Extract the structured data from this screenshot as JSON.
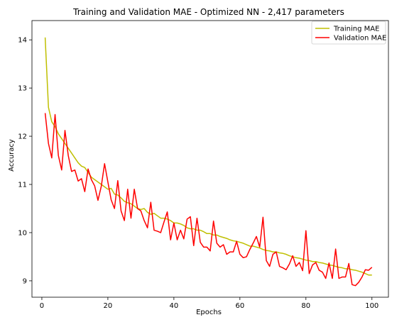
{
  "chart_data": {
    "type": "line",
    "title": "Training and Validation MAE - Optimized NN - 2,417 parameters",
    "xlabel": "Epochs",
    "ylabel": "Accuracy",
    "xlim": [
      -3,
      105
    ],
    "ylim": [
      8.66,
      14.4
    ],
    "xticks": [
      0,
      20,
      40,
      60,
      80,
      100
    ],
    "yticks": [
      9,
      10,
      11,
      12,
      13,
      14
    ],
    "grid": false,
    "legend_position": "top-right",
    "series": [
      {
        "name": "Training MAE",
        "color": "#bfbf00",
        "x": [
          1,
          2,
          3,
          4,
          5,
          6,
          7,
          8,
          9,
          10,
          11,
          12,
          13,
          14,
          15,
          16,
          17,
          18,
          19,
          20,
          21,
          22,
          23,
          24,
          25,
          26,
          27,
          28,
          29,
          30,
          31,
          32,
          33,
          34,
          35,
          36,
          37,
          38,
          39,
          40,
          41,
          42,
          43,
          44,
          45,
          46,
          47,
          48,
          49,
          50,
          51,
          52,
          53,
          54,
          55,
          56,
          57,
          58,
          59,
          60,
          61,
          62,
          63,
          64,
          65,
          66,
          67,
          68,
          69,
          70,
          71,
          72,
          73,
          74,
          75,
          76,
          77,
          78,
          79,
          80,
          81,
          82,
          83,
          84,
          85,
          86,
          87,
          88,
          89,
          90,
          91,
          92,
          93,
          94,
          95,
          96,
          97,
          98,
          99,
          100
        ],
        "values": [
          14.05,
          12.6,
          12.3,
          12.2,
          12.05,
          11.95,
          11.85,
          11.75,
          11.65,
          11.55,
          11.45,
          11.38,
          11.35,
          11.25,
          11.15,
          11.1,
          11.05,
          11.0,
          10.95,
          10.9,
          10.92,
          10.8,
          10.78,
          10.72,
          10.65,
          10.62,
          10.6,
          10.55,
          10.5,
          10.48,
          10.5,
          10.42,
          10.38,
          10.4,
          10.35,
          10.3,
          10.3,
          10.28,
          10.25,
          10.2,
          10.2,
          10.18,
          10.15,
          10.1,
          10.08,
          10.08,
          10.05,
          10.05,
          10.02,
          9.98,
          9.98,
          9.95,
          9.95,
          9.92,
          9.9,
          9.88,
          9.85,
          9.83,
          9.82,
          9.8,
          9.78,
          9.75,
          9.72,
          9.72,
          9.7,
          9.68,
          9.65,
          9.63,
          9.62,
          9.6,
          9.6,
          9.58,
          9.57,
          9.55,
          9.52,
          9.5,
          9.48,
          9.47,
          9.45,
          9.43,
          9.42,
          9.4,
          9.4,
          9.38,
          9.37,
          9.35,
          9.33,
          9.32,
          9.3,
          9.28,
          9.27,
          9.25,
          9.25,
          9.23,
          9.22,
          9.2,
          9.18,
          9.15,
          9.12,
          9.12
        ]
      },
      {
        "name": "Validation MAE",
        "color": "#ff0000",
        "x": [
          1,
          2,
          3,
          4,
          5,
          6,
          7,
          8,
          9,
          10,
          11,
          12,
          13,
          14,
          15,
          16,
          17,
          18,
          19,
          20,
          21,
          22,
          23,
          24,
          25,
          26,
          27,
          28,
          29,
          30,
          31,
          32,
          33,
          34,
          35,
          36,
          37,
          38,
          39,
          40,
          41,
          42,
          43,
          44,
          45,
          46,
          47,
          48,
          49,
          50,
          51,
          52,
          53,
          54,
          55,
          56,
          57,
          58,
          59,
          60,
          61,
          62,
          63,
          64,
          65,
          66,
          67,
          68,
          69,
          70,
          71,
          72,
          73,
          74,
          75,
          76,
          77,
          78,
          79,
          80,
          81,
          82,
          83,
          84,
          85,
          86,
          87,
          88,
          89,
          90,
          91,
          92,
          93,
          94,
          95,
          96,
          97,
          98,
          99,
          100
        ],
        "values": [
          12.48,
          11.85,
          11.55,
          12.45,
          11.6,
          11.3,
          12.12,
          11.6,
          11.27,
          11.3,
          11.07,
          11.12,
          10.85,
          11.32,
          11.1,
          10.97,
          10.67,
          10.96,
          11.43,
          11.05,
          10.68,
          10.5,
          11.08,
          10.45,
          10.25,
          10.9,
          10.3,
          10.9,
          10.5,
          10.45,
          10.25,
          10.1,
          10.63,
          10.05,
          10.03,
          10.0,
          10.22,
          10.43,
          9.85,
          10.2,
          9.85,
          10.05,
          9.87,
          10.28,
          10.33,
          9.73,
          10.3,
          9.8,
          9.7,
          9.7,
          9.62,
          10.24,
          9.78,
          9.7,
          9.75,
          9.55,
          9.6,
          9.6,
          9.82,
          9.55,
          9.48,
          9.5,
          9.65,
          9.78,
          9.92,
          9.7,
          10.32,
          9.42,
          9.3,
          9.55,
          9.6,
          9.3,
          9.27,
          9.23,
          9.35,
          9.52,
          9.3,
          9.38,
          9.21,
          10.04,
          9.15,
          9.33,
          9.38,
          9.22,
          9.18,
          9.05,
          9.37,
          9.05,
          9.66,
          9.05,
          9.08,
          9.08,
          9.36,
          8.92,
          8.9,
          8.97,
          9.08,
          9.23,
          9.22,
          9.28
        ]
      }
    ]
  }
}
